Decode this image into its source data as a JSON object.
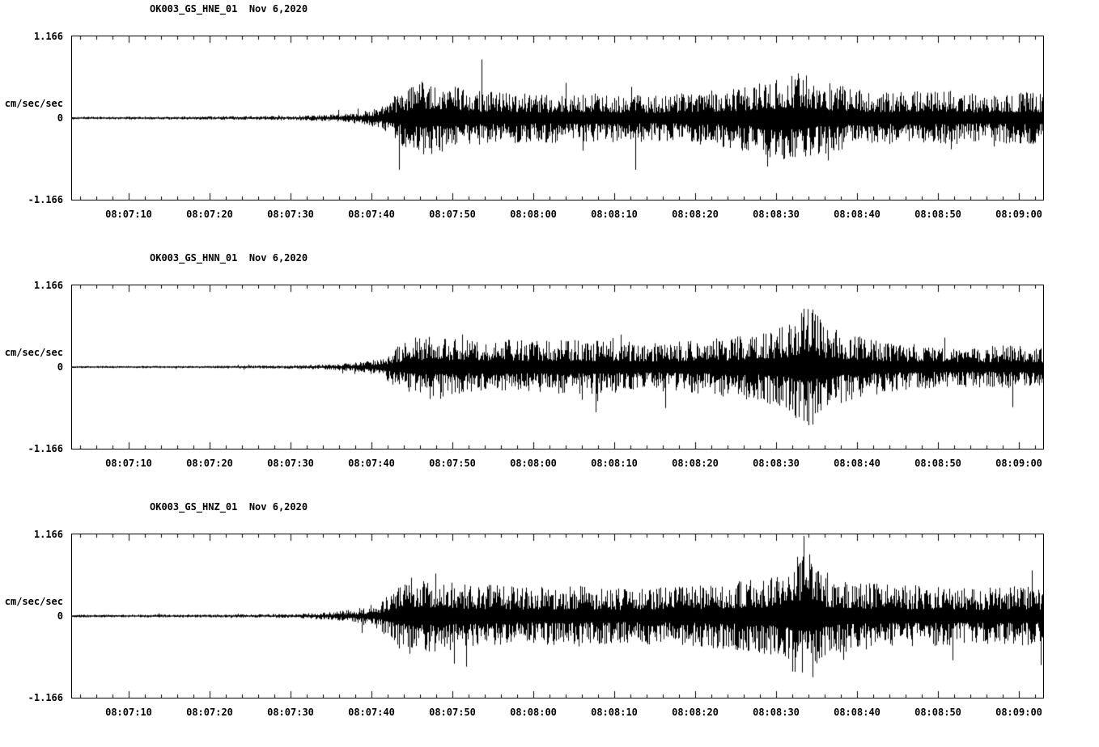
{
  "page": {
    "background": "#ffffff",
    "text_color": "#000000"
  },
  "chart_data": [
    {
      "type": "line",
      "title": "OK003_GS_HNE_01  Nov 6,2020",
      "ylabel": "cm/sec/sec",
      "yticks": [
        "1.166",
        "0",
        "-1.166"
      ],
      "ylim": [
        -1.166,
        1.166
      ],
      "line_color": "#000000",
      "grid": false,
      "x_start_sec": 3,
      "x_end_sec": 123,
      "minor_tick_interval_sec": 2,
      "major_tick_interval_sec": 10,
      "x_tick_seconds": [
        10,
        20,
        30,
        40,
        50,
        60,
        70,
        80,
        90,
        100,
        110,
        120
      ],
      "x_tick_labels": [
        "08:07:10",
        "08:07:20",
        "08:07:30",
        "08:07:40",
        "08:07:50",
        "08:08:00",
        "08:08:10",
        "08:08:20",
        "08:08:30",
        "08:08:40",
        "08:08:50",
        "08:09:00"
      ],
      "envelope_note": "peak amplitude envelope (cm/sec/sec) vs seconds after 08:07:00, estimated from plot",
      "envelope": [
        [
          3,
          0.02
        ],
        [
          20,
          0.025
        ],
        [
          30,
          0.03
        ],
        [
          35,
          0.05
        ],
        [
          38,
          0.08
        ],
        [
          41,
          0.15
        ],
        [
          43,
          0.35
        ],
        [
          45,
          0.5
        ],
        [
          47,
          0.55
        ],
        [
          49,
          0.5
        ],
        [
          52,
          0.42
        ],
        [
          56,
          0.38
        ],
        [
          60,
          0.35
        ],
        [
          65,
          0.38
        ],
        [
          70,
          0.35
        ],
        [
          75,
          0.33
        ],
        [
          80,
          0.38
        ],
        [
          85,
          0.45
        ],
        [
          88,
          0.55
        ],
        [
          90,
          0.6
        ],
        [
          93,
          0.68
        ],
        [
          95,
          0.55
        ],
        [
          100,
          0.42
        ],
        [
          105,
          0.38
        ],
        [
          110,
          0.4
        ],
        [
          115,
          0.35
        ],
        [
          120,
          0.38
        ],
        [
          123,
          0.38
        ]
      ]
    },
    {
      "type": "line",
      "title": "OK003_GS_HNN_01  Nov 6,2020",
      "ylabel": "cm/sec/sec",
      "yticks": [
        "1.166",
        "0",
        "-1.166"
      ],
      "ylim": [
        -1.166,
        1.166
      ],
      "line_color": "#000000",
      "grid": false,
      "x_start_sec": 3,
      "x_end_sec": 123,
      "minor_tick_interval_sec": 2,
      "major_tick_interval_sec": 10,
      "x_tick_seconds": [
        10,
        20,
        30,
        40,
        50,
        60,
        70,
        80,
        90,
        100,
        110,
        120
      ],
      "x_tick_labels": [
        "08:07:10",
        "08:07:20",
        "08:07:30",
        "08:07:40",
        "08:07:50",
        "08:08:00",
        "08:08:10",
        "08:08:20",
        "08:08:30",
        "08:08:40",
        "08:08:50",
        "08:09:00"
      ],
      "envelope_note": "peak amplitude envelope (cm/sec/sec) vs seconds after 08:07:00, estimated from plot",
      "envelope": [
        [
          3,
          0.015
        ],
        [
          20,
          0.018
        ],
        [
          30,
          0.025
        ],
        [
          35,
          0.04
        ],
        [
          38,
          0.07
        ],
        [
          41,
          0.12
        ],
        [
          43,
          0.3
        ],
        [
          45,
          0.42
        ],
        [
          47,
          0.48
        ],
        [
          50,
          0.45
        ],
        [
          53,
          0.4
        ],
        [
          57,
          0.42
        ],
        [
          60,
          0.38
        ],
        [
          65,
          0.4
        ],
        [
          70,
          0.38
        ],
        [
          75,
          0.35
        ],
        [
          80,
          0.4
        ],
        [
          85,
          0.45
        ],
        [
          88,
          0.5
        ],
        [
          91,
          0.6
        ],
        [
          93,
          0.85
        ],
        [
          94,
          0.95
        ],
        [
          96,
          0.6
        ],
        [
          100,
          0.45
        ],
        [
          105,
          0.35
        ],
        [
          110,
          0.32
        ],
        [
          115,
          0.3
        ],
        [
          120,
          0.32
        ],
        [
          123,
          0.3
        ]
      ]
    },
    {
      "type": "line",
      "title": "OK003_GS_HNZ_01  Nov 6,2020",
      "ylabel": "cm/sec/sec",
      "yticks": [
        "1.166",
        "0",
        "-1.166"
      ],
      "ylim": [
        -1.166,
        1.166
      ],
      "line_color": "#000000",
      "grid": false,
      "x_start_sec": 3,
      "x_end_sec": 123,
      "minor_tick_interval_sec": 2,
      "major_tick_interval_sec": 10,
      "x_tick_seconds": [
        10,
        20,
        30,
        40,
        50,
        60,
        70,
        80,
        90,
        100,
        110,
        120
      ],
      "x_tick_labels": [
        "08:07:10",
        "08:07:20",
        "08:07:30",
        "08:07:40",
        "08:07:50",
        "08:08:00",
        "08:08:10",
        "08:08:20",
        "08:08:30",
        "08:08:40",
        "08:08:50",
        "08:09:00"
      ],
      "envelope_note": "peak amplitude envelope (cm/sec/sec) vs seconds after 08:07:00, estimated from plot",
      "envelope": [
        [
          3,
          0.02
        ],
        [
          20,
          0.022
        ],
        [
          30,
          0.03
        ],
        [
          35,
          0.06
        ],
        [
          38,
          0.1
        ],
        [
          41,
          0.2
        ],
        [
          43,
          0.45
        ],
        [
          45,
          0.6
        ],
        [
          47,
          0.55
        ],
        [
          50,
          0.5
        ],
        [
          55,
          0.45
        ],
        [
          60,
          0.42
        ],
        [
          65,
          0.45
        ],
        [
          70,
          0.4
        ],
        [
          75,
          0.42
        ],
        [
          80,
          0.45
        ],
        [
          85,
          0.5
        ],
        [
          88,
          0.55
        ],
        [
          91,
          0.7
        ],
        [
          93,
          0.95
        ],
        [
          94,
          1.0
        ],
        [
          96,
          0.6
        ],
        [
          100,
          0.5
        ],
        [
          105,
          0.45
        ],
        [
          110,
          0.45
        ],
        [
          115,
          0.4
        ],
        [
          120,
          0.45
        ],
        [
          123,
          0.42
        ]
      ]
    }
  ]
}
